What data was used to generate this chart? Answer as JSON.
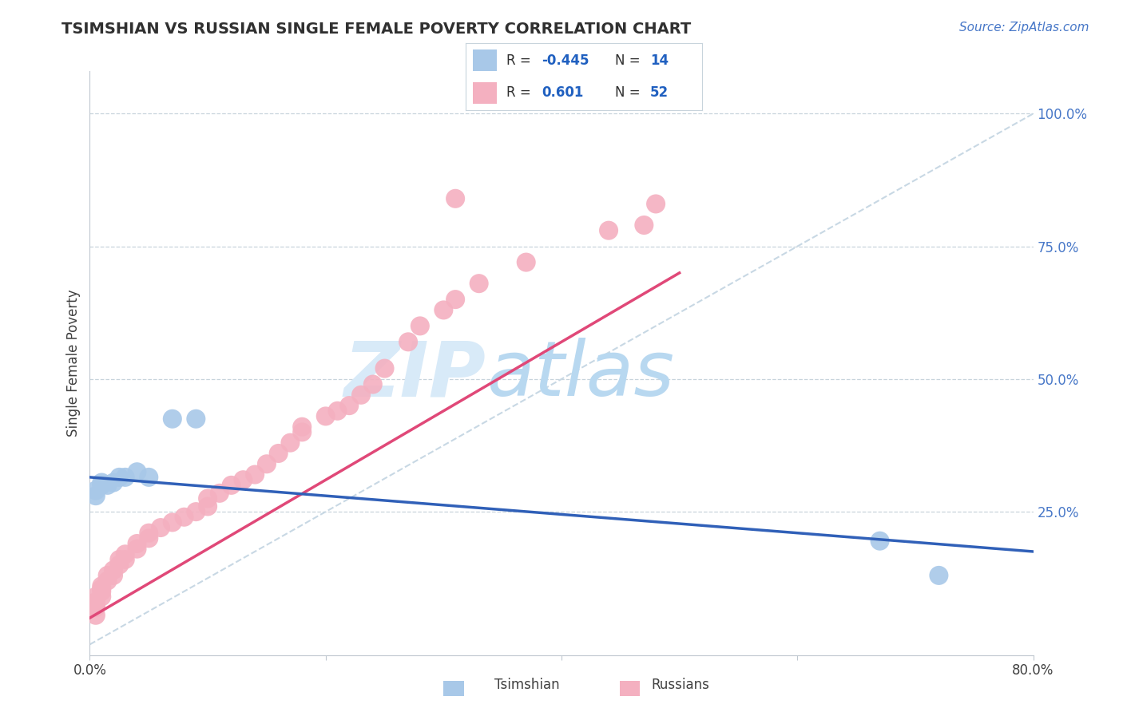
{
  "title": "TSIMSHIAN VS RUSSIAN SINGLE FEMALE POVERTY CORRELATION CHART",
  "source_text": "Source: ZipAtlas.com",
  "ylabel": "Single Female Poverty",
  "xlim": [
    0.0,
    0.8
  ],
  "ylim": [
    -0.02,
    1.08
  ],
  "yticks_right": [
    0.25,
    0.5,
    0.75,
    1.0
  ],
  "ytick_right_labels": [
    "25.0%",
    "50.0%",
    "75.0%",
    "100.0%"
  ],
  "tsimshian_color": "#a8c8e8",
  "russian_color": "#f4b0c0",
  "tsimshian_line_color": "#3060b8",
  "russian_line_color": "#e04878",
  "diagonal_color": "#c8d8e4",
  "tsimshian_R": -0.445,
  "tsimshian_N": 14,
  "russian_R": 0.601,
  "russian_N": 52,
  "legend_text_color": "#2060c0",
  "watermark_zip": "ZIP",
  "watermark_atlas": "atlas",
  "watermark_color": "#d8eaf8",
  "grid_color": "#c8d4dc",
  "background_color": "#ffffff",
  "tsimshian_x": [
    0.005,
    0.005,
    0.01,
    0.01,
    0.015,
    0.02,
    0.025,
    0.03,
    0.04,
    0.05,
    0.07,
    0.09,
    0.67,
    0.72
  ],
  "tsimshian_y": [
    0.28,
    0.29,
    0.3,
    0.305,
    0.3,
    0.305,
    0.315,
    0.315,
    0.325,
    0.315,
    0.425,
    0.425,
    0.195,
    0.13
  ],
  "russian_x": [
    0.005,
    0.005,
    0.005,
    0.005,
    0.005,
    0.01,
    0.01,
    0.01,
    0.01,
    0.015,
    0.015,
    0.02,
    0.02,
    0.025,
    0.025,
    0.03,
    0.03,
    0.04,
    0.04,
    0.05,
    0.05,
    0.06,
    0.07,
    0.08,
    0.09,
    0.1,
    0.1,
    0.11,
    0.12,
    0.13,
    0.14,
    0.15,
    0.16,
    0.17,
    0.18,
    0.18,
    0.2,
    0.21,
    0.22,
    0.23,
    0.24,
    0.25,
    0.27,
    0.28,
    0.3,
    0.31,
    0.33,
    0.37,
    0.44,
    0.47,
    0.48,
    0.31
  ],
  "russian_y": [
    0.055,
    0.07,
    0.075,
    0.08,
    0.09,
    0.09,
    0.1,
    0.105,
    0.11,
    0.12,
    0.13,
    0.13,
    0.14,
    0.15,
    0.16,
    0.16,
    0.17,
    0.18,
    0.19,
    0.2,
    0.21,
    0.22,
    0.23,
    0.24,
    0.25,
    0.26,
    0.275,
    0.285,
    0.3,
    0.31,
    0.32,
    0.34,
    0.36,
    0.38,
    0.4,
    0.41,
    0.43,
    0.44,
    0.45,
    0.47,
    0.49,
    0.52,
    0.57,
    0.6,
    0.63,
    0.65,
    0.68,
    0.72,
    0.78,
    0.79,
    0.83,
    0.84
  ]
}
